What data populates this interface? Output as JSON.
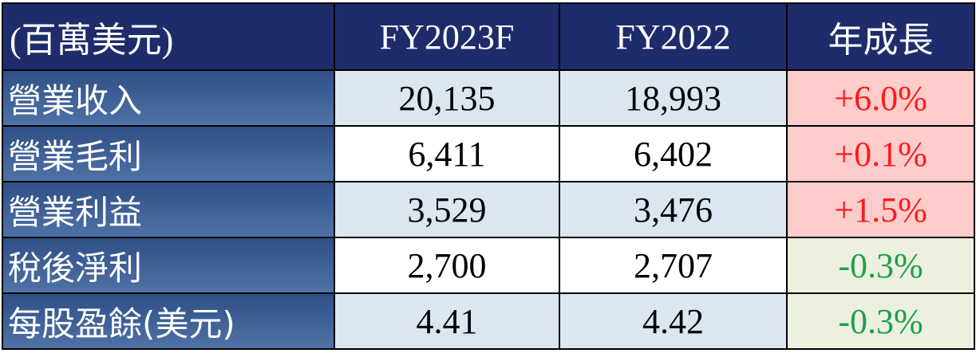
{
  "table": {
    "header": [
      "(百萬美元)",
      "FY2023F",
      "FY2022",
      "年成長"
    ],
    "rows": [
      {
        "label": "營業收入",
        "fy2023f": "20,135",
        "fy2022": "18,993",
        "growth": "+6.0%",
        "growth_color": "#ff1a1a",
        "growth_fill": "#ffcccc",
        "fill": "#dce6f1"
      },
      {
        "label": "營業毛利",
        "fy2023f": "6,411",
        "fy2022": "6,402",
        "growth": "+0.1%",
        "growth_color": "#ff1a1a",
        "growth_fill": "#ffcccc",
        "fill": "#ffffff"
      },
      {
        "label": "營業利益",
        "fy2023f": "3,529",
        "fy2022": "3,476",
        "growth": "+1.5%",
        "growth_color": "#ff1a1a",
        "growth_fill": "#ffcccc",
        "fill": "#dce6f1"
      },
      {
        "label": "稅後淨利",
        "fy2023f": "2,700",
        "fy2022": "2,707",
        "growth": "-0.3%",
        "growth_color": "#1fa04a",
        "growth_fill": "#ebf1de",
        "fill": "#ffffff"
      },
      {
        "label": "每股盈餘(美元)",
        "fy2023f": "4.41",
        "fy2022": "4.42",
        "growth": "-0.3%",
        "growth_color": "#1fa04a",
        "growth_fill": "#ebf1de",
        "fill": "#dce6f1"
      }
    ]
  }
}
